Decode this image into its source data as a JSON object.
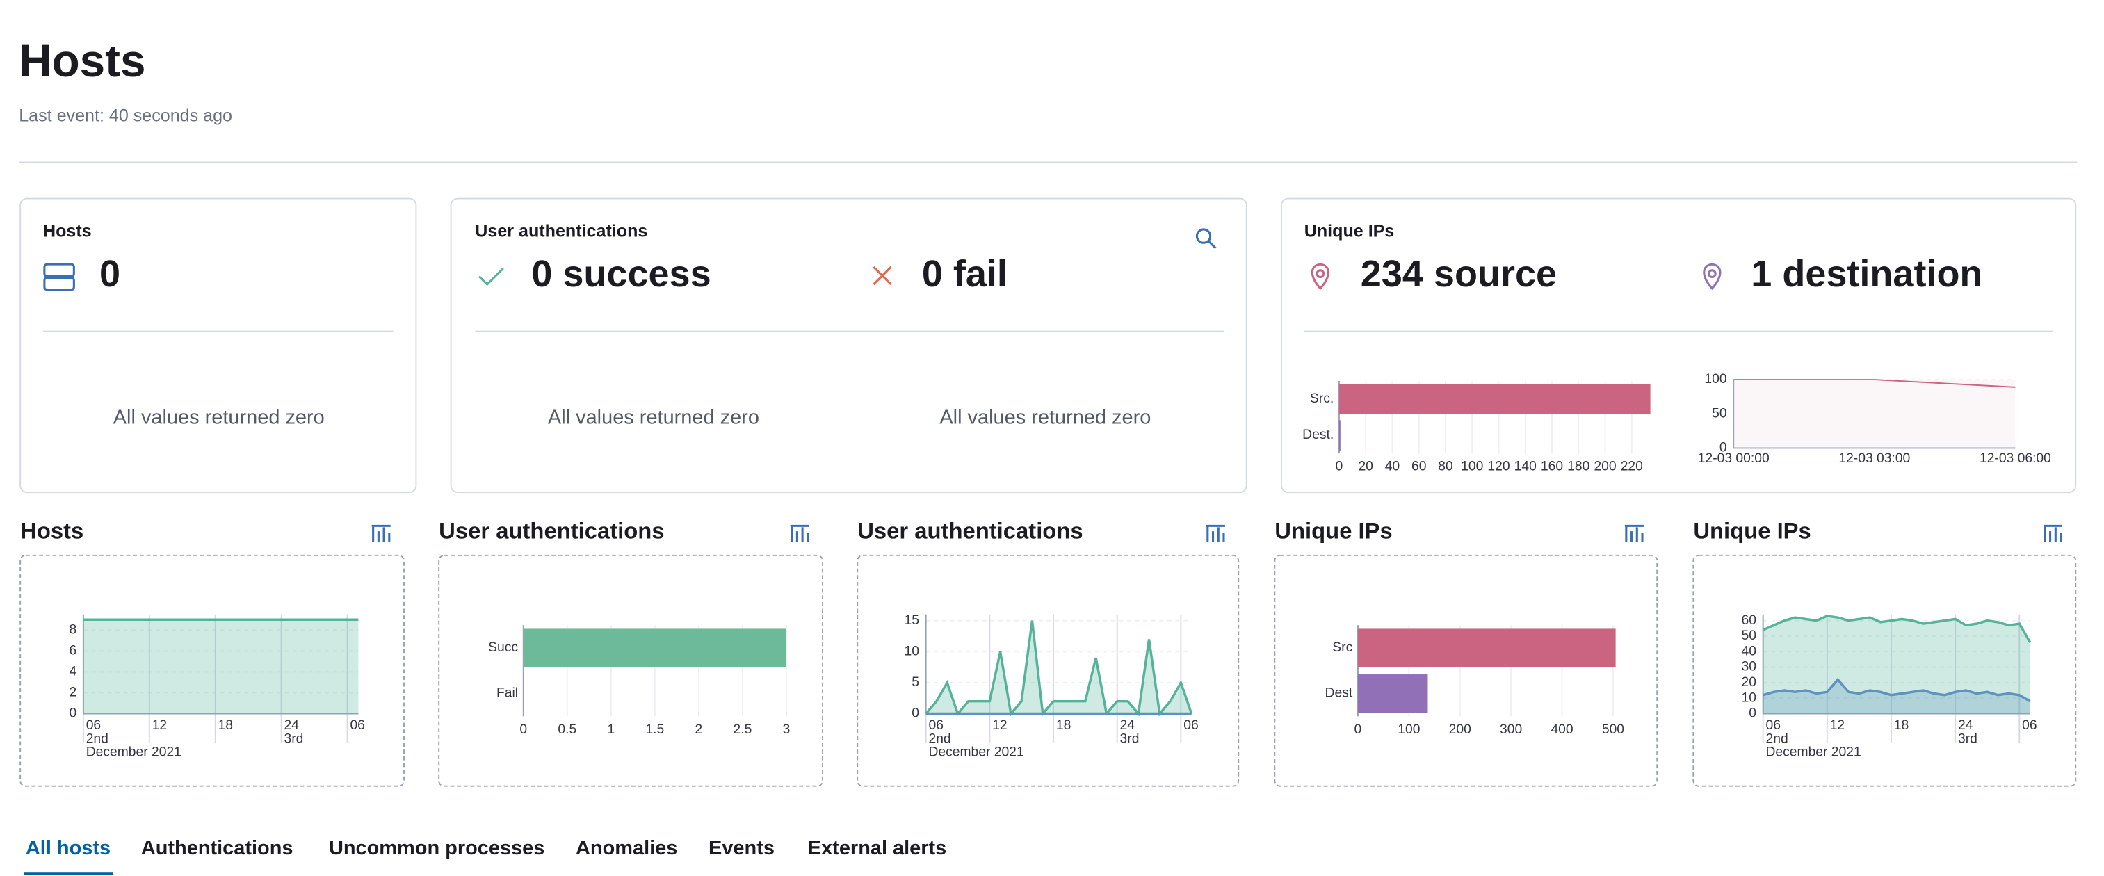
{
  "header": {
    "title": "Hosts",
    "subtitle": "Last event: 40 seconds ago"
  },
  "kpi_cards": [
    {
      "title": "Hosts",
      "stats": [
        "0"
      ],
      "empty_messages": [
        "All values returned zero"
      ]
    },
    {
      "title": "User authentications",
      "stats": [
        "0 success",
        "0 fail"
      ],
      "empty_messages": [
        "All values returned zero",
        "All values returned zero"
      ]
    },
    {
      "title": "Unique IPs",
      "stats": [
        "234 source",
        "1 destination"
      ]
    }
  ],
  "chart_data": [
    {
      "type": "bar",
      "orientation": "horizontal",
      "categories": [
        "Src.",
        "Dest."
      ],
      "values": [
        234,
        1
      ],
      "colors": [
        "#ca6480",
        "#9170b8"
      ],
      "xlim": [
        0,
        234
      ],
      "xticks": [
        0,
        20,
        40,
        60,
        80,
        100,
        120,
        140,
        160,
        180,
        200,
        220
      ]
    },
    {
      "type": "line",
      "categories": [
        "12-03 00:00",
        "12-03 03:00",
        "12-03 06:00"
      ],
      "series": [
        {
          "color": "#ca6480",
          "values": [
            100,
            100,
            89
          ]
        }
      ],
      "ylim": [
        0,
        100
      ],
      "yticks": [
        0,
        50,
        100
      ]
    },
    {
      "type": "area",
      "title": "Hosts",
      "x": [
        6,
        31
      ],
      "series": [
        {
          "color": "#54b399",
          "values": [
            9,
            9
          ]
        }
      ],
      "xlim": [
        6,
        31
      ],
      "xticks": [
        {
          "value": 6,
          "label": "06"
        },
        12,
        18,
        24,
        {
          "value": 30,
          "label": "06"
        }
      ],
      "xsubticks": [
        {
          "value": 6,
          "label": "2nd"
        },
        {
          "value": 24,
          "label": "3rd"
        }
      ],
      "xlabel": "December 2021",
      "ylim": [
        0,
        9.5
      ],
      "yticks": [
        0,
        2,
        4,
        6,
        8
      ]
    },
    {
      "type": "bar",
      "orientation": "horizontal",
      "title": "User authentications",
      "categories": [
        "Succ",
        "Fail"
      ],
      "values": [
        3,
        0
      ],
      "colors": [
        "#6dba9b",
        "#6092c0"
      ],
      "xlim": [
        0,
        3
      ],
      "xticks": [
        0,
        0.5,
        1,
        1.5,
        2,
        2.5,
        3
      ]
    },
    {
      "type": "area",
      "title": "User authentications",
      "x": [
        6,
        7,
        8,
        9,
        10,
        11,
        12,
        13,
        14,
        15,
        16,
        17,
        18,
        19,
        20,
        21,
        22,
        23,
        24,
        25,
        26,
        27,
        28,
        29,
        30,
        31
      ],
      "series": [
        {
          "color": "#54b399",
          "values": [
            0,
            2,
            5,
            0,
            2,
            2,
            2,
            10,
            0,
            2,
            15,
            0,
            2,
            2,
            2,
            2,
            9,
            0,
            2,
            2,
            0,
            12,
            0,
            2,
            5,
            0
          ]
        },
        {
          "color": "#6092c0",
          "values": [
            0,
            0,
            0,
            0,
            0,
            0,
            0,
            0,
            0,
            0,
            0,
            0,
            0,
            0,
            0,
            0,
            0,
            0,
            0,
            0,
            0,
            0,
            0,
            0,
            0,
            0
          ]
        }
      ],
      "xlim": [
        6,
        31
      ],
      "xticks": [
        {
          "value": 6,
          "label": "06"
        },
        12,
        18,
        24,
        {
          "value": 30,
          "label": "06"
        }
      ],
      "xsubticks": [
        {
          "value": 6,
          "label": "2nd"
        },
        {
          "value": 24,
          "label": "3rd"
        }
      ],
      "xlabel": "December 2021",
      "ylim": [
        0,
        16
      ],
      "yticks": [
        0,
        5,
        10,
        15
      ]
    },
    {
      "type": "bar",
      "orientation": "horizontal",
      "title": "Unique IPs",
      "categories": [
        "Src",
        "Dest"
      ],
      "values": [
        505,
        137
      ],
      "colors": [
        "#ca6480",
        "#9170b8"
      ],
      "xlim": [
        0,
        510
      ],
      "xticks": [
        0,
        100,
        200,
        300,
        400,
        500
      ]
    },
    {
      "type": "area",
      "title": "Unique IPs",
      "x": [
        6,
        7,
        8,
        9,
        10,
        11,
        12,
        13,
        14,
        15,
        16,
        17,
        18,
        19,
        20,
        21,
        22,
        23,
        24,
        25,
        26,
        27,
        28,
        29,
        30,
        31
      ],
      "series": [
        {
          "color": "#54b399",
          "values": [
            54,
            57,
            60,
            62,
            61,
            60,
            63,
            62,
            60,
            61,
            62,
            59,
            60,
            61,
            60,
            58,
            59,
            60,
            61,
            57,
            58,
            60,
            59,
            57,
            58,
            46
          ]
        },
        {
          "color": "#6092c0",
          "values": [
            12,
            14,
            15,
            14,
            15,
            13,
            14,
            22,
            14,
            13,
            15,
            14,
            12,
            13,
            14,
            15,
            13,
            12,
            14,
            15,
            13,
            14,
            12,
            13,
            12,
            8
          ]
        }
      ],
      "xlim": [
        6,
        31
      ],
      "xticks": [
        {
          "value": 6,
          "label": "06"
        },
        12,
        18,
        24,
        {
          "value": 30,
          "label": "06"
        }
      ],
      "xsubticks": [
        {
          "value": 6,
          "label": "2nd"
        },
        {
          "value": 24,
          "label": "3rd"
        }
      ],
      "xlabel": "December 2021",
      "ylim": [
        0,
        64
      ],
      "yticks": [
        0,
        10,
        20,
        30,
        40,
        50,
        60
      ]
    }
  ],
  "tabs": {
    "items": [
      "All hosts",
      "Authentications",
      "Uncommon processes",
      "Anomalies",
      "Events",
      "External alerts"
    ],
    "selected": 0
  }
}
